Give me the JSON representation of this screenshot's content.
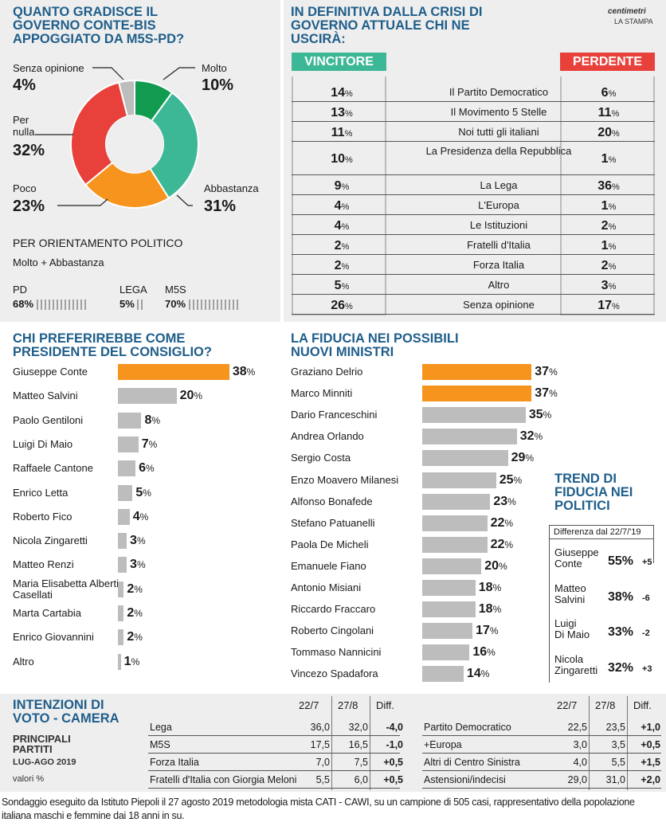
{
  "colors": {
    "accent_blue": "#1f5e8a",
    "green": "#119b50",
    "teal": "#3db896",
    "orange": "#f7941d",
    "red": "#e8413b",
    "grey": "#bdbdbd"
  },
  "gradimento": {
    "title": "QUANTO GRADISCE IL GOVERNO CONTE-BIS APPOGGIATO DA M5S-PD?",
    "slices": [
      {
        "label": "Molto",
        "value": "10%"
      },
      {
        "label": "Abbastanza",
        "value": "31%"
      },
      {
        "label": "Poco",
        "value": "23%"
      },
      {
        "label": "Per nulla",
        "value": "32%"
      },
      {
        "label": "Senza opinione",
        "value": "4%"
      }
    ],
    "orientamento_title": "PER ORIENTAMENTO POLITICO",
    "orientamento_sub": "Molto + Abbastanza",
    "partiti": [
      {
        "name": "PD",
        "value": "68%"
      },
      {
        "name": "LEGA",
        "value": "5%"
      },
      {
        "name": "M5S",
        "value": "70%"
      }
    ]
  },
  "crisi": {
    "title": "IN DEFINITIVA DALLA CRISI DI GOVERNO ATTUALE CHI NE USCIRÀ:",
    "source_brand": "centimetri",
    "source_paper": "LA STAMPA",
    "vincitore_label": "VINCITORE",
    "perdente_label": "PERDENTE",
    "rows": [
      {
        "label": "Il Partito Democratico",
        "v": "14",
        "p": "6"
      },
      {
        "label": "Il Movimento 5 Stelle",
        "v": "13",
        "p": "11"
      },
      {
        "label": "Noi tutti gli italiani",
        "v": "11",
        "p": "20"
      },
      {
        "label": "La Presidenza della Repubblica",
        "v": "10",
        "p": "1"
      },
      {
        "label": "La Lega",
        "v": "9",
        "p": "36"
      },
      {
        "label": "L'Europa",
        "v": "4",
        "p": "1"
      },
      {
        "label": "Le Istituzioni",
        "v": "4",
        "p": "2"
      },
      {
        "label": "Fratelli d'Italia",
        "v": "2",
        "p": "1"
      },
      {
        "label": "Forza Italia",
        "v": "2",
        "p": "2"
      },
      {
        "label": "Altro",
        "v": "5",
        "p": "3"
      },
      {
        "label": "Senza opinione",
        "v": "26",
        "p": "17"
      }
    ]
  },
  "presidente": {
    "title": "CHI PREFERIREBBE COME PRESIDENTE DEL CONSIGLIO?",
    "items": [
      {
        "name": "Giuseppe Conte",
        "value": "38"
      },
      {
        "name": "Matteo Salvini",
        "value": "20"
      },
      {
        "name": "Paolo Gentiloni",
        "value": "8"
      },
      {
        "name": "Luigi Di Maio",
        "value": "7"
      },
      {
        "name": "Raffaele Cantone",
        "value": "6"
      },
      {
        "name": "Enrico Letta",
        "value": "5"
      },
      {
        "name": "Roberto Fico",
        "value": "4"
      },
      {
        "name": "Nicola Zingaretti",
        "value": "3"
      },
      {
        "name": "Matteo Renzi",
        "value": "3"
      },
      {
        "name": "Maria Elisabetta Alberti Casellati",
        "value": "2"
      },
      {
        "name": "Marta Cartabia",
        "value": "2"
      },
      {
        "name": "Enrico Giovannini",
        "value": "2"
      },
      {
        "name": "Altro",
        "value": "1"
      }
    ]
  },
  "ministri": {
    "title": "LA FIDUCIA NEI POSSIBILI NUOVI MINISTRI",
    "items": [
      {
        "name": "Graziano Delrio",
        "value": "37"
      },
      {
        "name": "Marco Minniti",
        "value": "37"
      },
      {
        "name": "Dario Franceschini",
        "value": "35"
      },
      {
        "name": "Andrea Orlando",
        "value": "32"
      },
      {
        "name": "Sergio Costa",
        "value": "29"
      },
      {
        "name": "Enzo Moavero Milanesi",
        "value": "25"
      },
      {
        "name": "Alfonso Bonafede",
        "value": "23"
      },
      {
        "name": "Stefano Patuanelli",
        "value": "22"
      },
      {
        "name": "Paola De Micheli",
        "value": "22"
      },
      {
        "name": "Emanuele Fiano",
        "value": "20"
      },
      {
        "name": "Antonio Misiani",
        "value": "18"
      },
      {
        "name": "Riccardo Fraccaro",
        "value": "18"
      },
      {
        "name": "Roberto Cingolani",
        "value": "17"
      },
      {
        "name": "Tommaso Nannicini",
        "value": "16"
      },
      {
        "name": "Vincezo Spadafora",
        "value": "14"
      }
    ]
  },
  "trend": {
    "title": "TREND DI FIDUCIA NEI POLITICI",
    "diff_label": "Differenza dal 22/7/'19",
    "items": [
      {
        "first": "Giuseppe",
        "last": "Conte",
        "value": "55%",
        "diff": "+5"
      },
      {
        "first": "Matteo",
        "last": "Salvini",
        "value": "38%",
        "diff": "-6"
      },
      {
        "first": "Luigi",
        "last": "Di Maio",
        "value": "33%",
        "diff": "-2"
      },
      {
        "first": "Nicola",
        "last": "Zingaretti",
        "value": "32%",
        "diff": "+3"
      }
    ]
  },
  "voto": {
    "title": "INTENZIONI DI VOTO - CAMERA",
    "subtitle": "PRINCIPALI PARTITI",
    "period": "LUG-AGO 2019",
    "unit": "valori %",
    "headers": [
      "22/7",
      "27/8",
      "Diff."
    ],
    "left": [
      {
        "name": "Lega",
        "a": "36,0",
        "b": "32,0",
        "d": "-4,0"
      },
      {
        "name": "M5S",
        "a": "17,5",
        "b": "16,5",
        "d": "-1,0"
      },
      {
        "name": "Forza Italia",
        "a": "7,0",
        "b": "7,5",
        "d": "+0,5"
      },
      {
        "name": "Fratelli d'Italia con Giorgia Meloni",
        "a": "5,5",
        "b": "6,0",
        "d": "+0,5"
      }
    ],
    "right": [
      {
        "name": "Partito Democratico",
        "a": "22,5",
        "b": "23,5",
        "d": "+1,0"
      },
      {
        "name": "+Europa",
        "a": "3,0",
        "b": "3,5",
        "d": "+0,5"
      },
      {
        "name": "Altri di Centro Sinistra",
        "a": "4,0",
        "b": "5,5",
        "d": "+1,5"
      },
      {
        "name": "Astensioni/indecisi",
        "a": "29,0",
        "b": "31,0",
        "d": "+2,0"
      }
    ]
  },
  "footnote": "Sondaggio eseguito da Istituto Piepoli il 27 agosto 2019 metodologia mista CATI - CAWI, su un campione di 505 casi, rappresentativo della popolazione italiana maschi e femmine dai 18 anni in su.",
  "chart_data": [
    {
      "type": "pie",
      "title": "QUANTO GRADISCE IL GOVERNO CONTE-BIS APPOGGIATO DA M5S-PD?",
      "categories": [
        "Molto",
        "Abbastanza",
        "Poco",
        "Per nulla",
        "Senza opinione"
      ],
      "values": [
        10,
        31,
        23,
        32,
        4
      ]
    },
    {
      "type": "table",
      "title": "IN DEFINITIVA DALLA CRISI DI GOVERNO ATTUALE CHI NE USCIRÀ:",
      "categories": [
        "Il Partito Democratico",
        "Il Movimento 5 Stelle",
        "Noi tutti gli italiani",
        "La Presidenza della Repubblica",
        "La Lega",
        "L'Europa",
        "Le Istituzioni",
        "Fratelli d'Italia",
        "Forza Italia",
        "Altro",
        "Senza opinione"
      ],
      "series": [
        {
          "name": "VINCITORE",
          "values": [
            14,
            13,
            11,
            10,
            9,
            4,
            4,
            2,
            2,
            5,
            26
          ]
        },
        {
          "name": "PERDENTE",
          "values": [
            6,
            11,
            20,
            1,
            36,
            1,
            2,
            1,
            2,
            3,
            17
          ]
        }
      ]
    },
    {
      "type": "bar",
      "title": "CHI PREFERIREBBE COME PRESIDENTE DEL CONSIGLIO?",
      "categories": [
        "Giuseppe Conte",
        "Matteo Salvini",
        "Paolo Gentiloni",
        "Luigi Di Maio",
        "Raffaele Cantone",
        "Enrico Letta",
        "Roberto Fico",
        "Nicola Zingaretti",
        "Matteo Renzi",
        "Maria Elisabetta Alberti Casellati",
        "Marta Cartabia",
        "Enrico Giovannini",
        "Altro"
      ],
      "values": [
        38,
        20,
        8,
        7,
        6,
        5,
        4,
        3,
        3,
        2,
        2,
        2,
        1
      ]
    },
    {
      "type": "bar",
      "title": "LA FIDUCIA NEI POSSIBILI NUOVI MINISTRI",
      "categories": [
        "Graziano Delrio",
        "Marco Minniti",
        "Dario Franceschini",
        "Andrea Orlando",
        "Sergio Costa",
        "Enzo Moavero Milanesi",
        "Alfonso Bonafede",
        "Stefano Patuanelli",
        "Paola De Micheli",
        "Emanuele Fiano",
        "Antonio Misiani",
        "Riccardo Fraccaro",
        "Roberto Cingolani",
        "Tommaso Nannicini",
        "Vincezo Spadafora"
      ],
      "values": [
        37,
        37,
        35,
        32,
        29,
        25,
        23,
        22,
        22,
        20,
        18,
        18,
        17,
        16,
        14
      ]
    },
    {
      "type": "table",
      "title": "INTENZIONI DI VOTO - CAMERA",
      "categories": [
        "Lega",
        "M5S",
        "Forza Italia",
        "Fratelli d'Italia con Giorgia Meloni",
        "Partito Democratico",
        "+Europa",
        "Altri di Centro Sinistra",
        "Astensioni/indecisi"
      ],
      "series": [
        {
          "name": "22/7",
          "values": [
            36.0,
            17.5,
            7.0,
            5.5,
            22.5,
            3.0,
            4.0,
            29.0
          ]
        },
        {
          "name": "27/8",
          "values": [
            32.0,
            16.5,
            7.5,
            6.0,
            23.5,
            3.5,
            5.5,
            31.0
          ]
        },
        {
          "name": "Diff.",
          "values": [
            -4.0,
            -1.0,
            0.5,
            0.5,
            1.0,
            0.5,
            1.5,
            2.0
          ]
        }
      ]
    }
  ]
}
